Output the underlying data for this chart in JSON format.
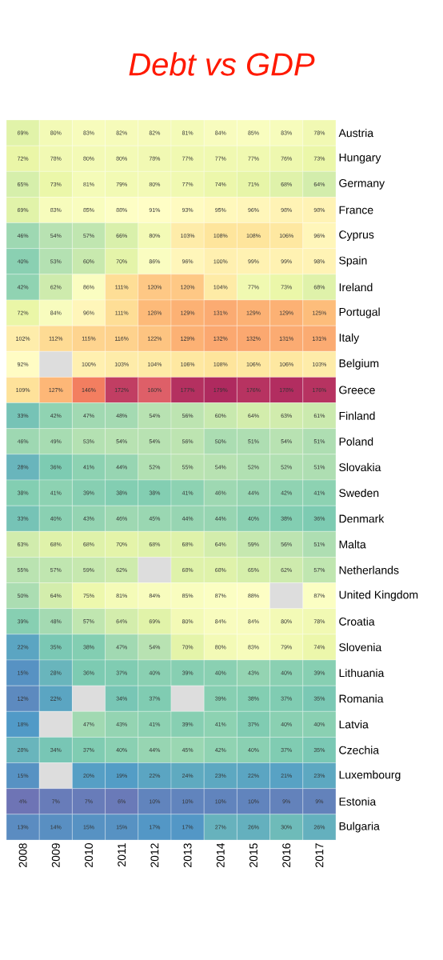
{
  "chart_data": {
    "type": "heatmap",
    "annotations": [
      "Debt vs GDP"
    ],
    "categories": [
      "2008",
      "2009",
      "2010",
      "2011",
      "2012",
      "2013",
      "2014",
      "2015",
      "2016",
      "2017"
    ],
    "y_categories": [
      "Austria",
      "Hungary",
      "Germany",
      "France",
      "Cyprus",
      "Spain",
      "Ireland",
      "Portugal",
      "Italy",
      "Belgium",
      "Greece",
      "Finland",
      "Poland",
      "Slovakia",
      "Sweden",
      "Denmark",
      "Malta",
      "Netherlands",
      "United Kingdom",
      "Croatia",
      "Slovenia",
      "Lithuania",
      "Romania",
      "Latvia",
      "Czechia",
      "Luxembourg",
      "Estonia",
      "Bulgaria"
    ],
    "cells": [
      [
        69,
        80,
        83,
        82,
        82,
        81,
        84,
        85,
        83,
        78
      ],
      [
        72,
        78,
        80,
        80,
        78,
        77,
        77,
        77,
        76,
        73
      ],
      [
        65,
        73,
        81,
        79,
        80,
        77,
        74,
        71,
        68,
        64
      ],
      [
        69,
        83,
        85,
        88,
        91,
        93,
        95,
        96,
        98,
        98
      ],
      [
        46,
        54,
        57,
        66,
        80,
        103,
        108,
        108,
        106,
        96
      ],
      [
        40,
        53,
        60,
        70,
        86,
        96,
        100,
        99,
        99,
        98
      ],
      [
        42,
        62,
        86,
        111,
        120,
        120,
        104,
        77,
        73,
        68
      ],
      [
        72,
        84,
        96,
        111,
        126,
        129,
        131,
        129,
        129,
        125
      ],
      [
        102,
        112,
        115,
        116,
        122,
        129,
        132,
        132,
        131,
        131
      ],
      [
        92,
        null,
        100,
        103,
        104,
        106,
        108,
        106,
        106,
        103
      ],
      [
        109,
        127,
        146,
        172,
        160,
        177,
        179,
        176,
        178,
        176
      ],
      [
        33,
        42,
        47,
        48,
        54,
        56,
        60,
        64,
        63,
        61
      ],
      [
        46,
        49,
        53,
        54,
        54,
        56,
        50,
        51,
        54,
        51
      ],
      [
        28,
        36,
        41,
        44,
        52,
        55,
        54,
        52,
        52,
        51
      ],
      [
        38,
        41,
        39,
        38,
        38,
        41,
        46,
        44,
        42,
        41
      ],
      [
        33,
        40,
        43,
        46,
        45,
        44,
        44,
        40,
        38,
        36
      ],
      [
        63,
        68,
        68,
        70,
        68,
        68,
        64,
        59,
        56,
        51
      ],
      [
        55,
        57,
        59,
        62,
        null,
        68,
        68,
        65,
        62,
        57
      ],
      [
        50,
        64,
        75,
        81,
        84,
        85,
        87,
        88,
        null,
        87
      ],
      [
        39,
        48,
        57,
        64,
        69,
        80,
        84,
        84,
        80,
        78
      ],
      [
        22,
        35,
        38,
        47,
        54,
        70,
        80,
        83,
        79,
        74
      ],
      [
        15,
        28,
        36,
        37,
        40,
        39,
        40,
        43,
        40,
        39
      ],
      [
        12,
        22,
        null,
        34,
        37,
        null,
        39,
        38,
        37,
        35
      ],
      [
        18,
        null,
        47,
        43,
        41,
        39,
        41,
        37,
        40,
        40
      ],
      [
        28,
        34,
        37,
        40,
        44,
        45,
        42,
        40,
        37,
        35
      ],
      [
        15,
        null,
        20,
        19,
        22,
        24,
        23,
        22,
        21,
        23
      ],
      [
        4,
        7,
        7,
        6,
        10,
        10,
        10,
        10,
        9,
        9
      ],
      [
        13,
        14,
        15,
        15,
        17,
        17,
        27,
        26,
        30,
        26
      ]
    ],
    "cell_labels": [
      [
        "69%",
        "80%",
        "83%",
        "82%",
        "82%",
        "81%",
        "84%",
        "85%",
        "83%",
        "78%"
      ],
      [
        "72%",
        "78%",
        "80%",
        "80%",
        "78%",
        "77%",
        "77%",
        "77%",
        "76%",
        "73%"
      ],
      [
        "65%",
        "73%",
        "81%",
        "79%",
        "80%",
        "77%",
        "74%",
        "71%",
        "68%",
        "64%"
      ],
      [
        "69%",
        "83%",
        "85%",
        "88%",
        "91%",
        "93%",
        "95%",
        "96%",
        "98%",
        "98%"
      ],
      [
        "46%",
        "54%",
        "57%",
        "66%",
        "80%",
        "103%",
        "108%",
        "108%",
        "106%",
        "96%"
      ],
      [
        "40%",
        "53%",
        "60%",
        "70%",
        "86%",
        "96%",
        "100%",
        "99%",
        "99%",
        "98%"
      ],
      [
        "42%",
        "62%",
        "86%",
        "111%",
        "120%",
        "120%",
        "104%",
        "77%",
        "73%",
        "68%"
      ],
      [
        "72%",
        "84%",
        "96%",
        "111%",
        "126%",
        "129%",
        "131%",
        "129%",
        "129%",
        "125%"
      ],
      [
        "102%",
        "112%",
        "115%",
        "116%",
        "122%",
        "129%",
        "132%",
        "132%",
        "131%",
        "131%"
      ],
      [
        "92%",
        null,
        "100%",
        "103%",
        "104%",
        "106%",
        "108%",
        "106%",
        "106%",
        "103%"
      ],
      [
        "109%",
        "127%",
        "146%",
        "172%",
        "160%",
        "177%",
        "179%",
        "176%",
        "178%",
        "176%"
      ],
      [
        "33%",
        "42%",
        "47%",
        "48%",
        "54%",
        "56%",
        "60%",
        "64%",
        "63%",
        "61%"
      ],
      [
        "46%",
        "49%",
        "53%",
        "54%",
        "54%",
        "56%",
        "50%",
        "51%",
        "54%",
        "51%"
      ],
      [
        "28%",
        "36%",
        "41%",
        "44%",
        "52%",
        "55%",
        "54%",
        "52%",
        "52%",
        "51%"
      ],
      [
        "38%",
        "41%",
        "39%",
        "38%",
        "38%",
        "41%",
        "46%",
        "44%",
        "42%",
        "41%"
      ],
      [
        "33%",
        "40%",
        "43%",
        "46%",
        "45%",
        "44%",
        "44%",
        "40%",
        "38%",
        "36%"
      ],
      [
        "63%",
        "68%",
        "68%",
        "70%",
        "68%",
        "68%",
        "64%",
        "59%",
        "56%",
        "51%"
      ],
      [
        "55%",
        "57%",
        "59%",
        "62%",
        null,
        "68%",
        "68%",
        "65%",
        "62%",
        "57%"
      ],
      [
        "50%",
        "64%",
        "75%",
        "81%",
        "84%",
        "85%",
        "87%",
        "88%",
        null,
        "87%"
      ],
      [
        "39%",
        "48%",
        "57%",
        "64%",
        "69%",
        "80%",
        "84%",
        "84%",
        "80%",
        "78%"
      ],
      [
        "22%",
        "35%",
        "38%",
        "47%",
        "54%",
        "70%",
        "80%",
        "83%",
        "79%",
        "74%"
      ],
      [
        "15%",
        "28%",
        "36%",
        "37%",
        "40%",
        "39%",
        "40%",
        "43%",
        "40%",
        "39%"
      ],
      [
        "12%",
        "22%",
        null,
        "34%",
        "37%",
        null,
        "39%",
        "38%",
        "37%",
        "35%"
      ],
      [
        "18%",
        null,
        "47%",
        "43%",
        "41%",
        "39%",
        "41%",
        "37%",
        "40%",
        "40%"
      ],
      [
        "28%",
        "34%",
        "37%",
        "40%",
        "44%",
        "45%",
        "42%",
        "40%",
        "37%",
        "35%"
      ],
      [
        "15%",
        null,
        "20%",
        "19%",
        "22%",
        "24%",
        "23%",
        "22%",
        "21%",
        "23%"
      ],
      [
        "4%",
        "7%",
        "7%",
        "6%",
        "10%",
        "10%",
        "10%",
        "10%",
        "9%",
        "9%"
      ],
      [
        "13%",
        "14%",
        "15%",
        "15%",
        "17%",
        "17%",
        "27%",
        "26%",
        "30%",
        "26%"
      ]
    ]
  }
}
